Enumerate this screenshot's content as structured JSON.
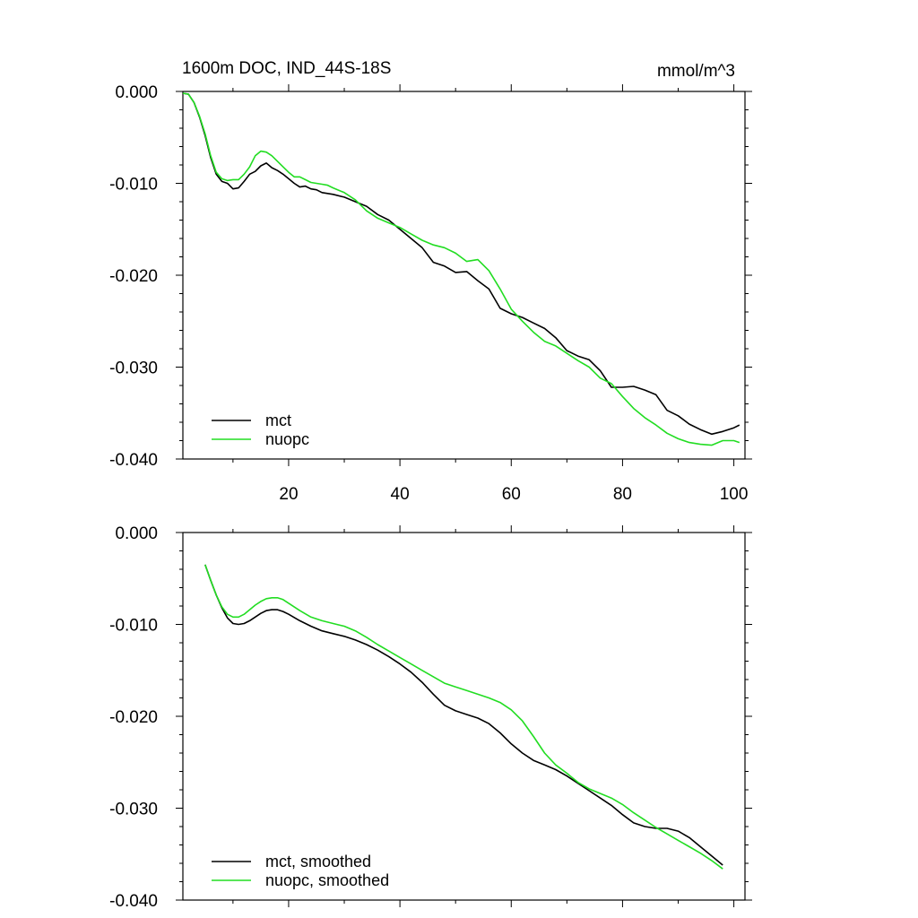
{
  "chart_data": [
    {
      "type": "line",
      "title": "1600m DOC, IND_44S-18S",
      "units": "mmol/m^3",
      "xlim": [
        1,
        102
      ],
      "ylim": [
        -0.04,
        0.0
      ],
      "xticks": [
        20,
        40,
        60,
        80,
        100
      ],
      "xtick_labels": [
        "20",
        "40",
        "60",
        "80",
        "100"
      ],
      "yticks": [
        0.0,
        -0.01,
        -0.02,
        -0.03,
        -0.04
      ],
      "ytick_labels": [
        "0.000",
        "-0.010",
        "-0.020",
        "-0.030",
        "-0.040"
      ],
      "legend_position": "bottom-left",
      "series": [
        {
          "name": "mct",
          "color": "#000000",
          "x": [
            1,
            2,
            3,
            4,
            5,
            6,
            7,
            8,
            9,
            10,
            11,
            12,
            13,
            14,
            15,
            16,
            17,
            18,
            19,
            20,
            21,
            22,
            23,
            24,
            25,
            26,
            27,
            28,
            30,
            32,
            34,
            36,
            38,
            40,
            42,
            44,
            46,
            48,
            50,
            52,
            54,
            56,
            58,
            60,
            62,
            64,
            66,
            68,
            70,
            72,
            74,
            76,
            78,
            80,
            82,
            84,
            86,
            88,
            90,
            92,
            94,
            96,
            98,
            100,
            101
          ],
          "y": [
            -0.0002,
            -0.0003,
            -0.0012,
            -0.0028,
            -0.0048,
            -0.0072,
            -0.009,
            -0.0098,
            -0.01,
            -0.0106,
            -0.0105,
            -0.0098,
            -0.009,
            -0.0087,
            -0.0081,
            -0.0078,
            -0.0083,
            -0.0086,
            -0.009,
            -0.0095,
            -0.01,
            -0.0104,
            -0.0103,
            -0.0106,
            -0.0107,
            -0.011,
            -0.0111,
            -0.0112,
            -0.0115,
            -0.012,
            -0.0125,
            -0.0134,
            -0.014,
            -0.015,
            -0.016,
            -0.017,
            -0.0186,
            -0.019,
            -0.0197,
            -0.0196,
            -0.0206,
            -0.0215,
            -0.0236,
            -0.0242,
            -0.0246,
            -0.0252,
            -0.0258,
            -0.0268,
            -0.0282,
            -0.0288,
            -0.0292,
            -0.0304,
            -0.0322,
            -0.0322,
            -0.0321,
            -0.0325,
            -0.033,
            -0.0347,
            -0.0353,
            -0.0362,
            -0.0368,
            -0.0373,
            -0.037,
            -0.0366,
            -0.0363
          ],
          "note_hidden": ""
        },
        {
          "name": "nuopc",
          "color": "#22dd22",
          "x": [
            1,
            2,
            3,
            4,
            5,
            6,
            7,
            8,
            9,
            10,
            11,
            12,
            13,
            14,
            15,
            16,
            17,
            18,
            19,
            20,
            21,
            22,
            23,
            24,
            25,
            26,
            27,
            28,
            30,
            32,
            34,
            36,
            38,
            40,
            42,
            44,
            46,
            48,
            50,
            52,
            54,
            56,
            58,
            60,
            62,
            64,
            66,
            68,
            70,
            72,
            74,
            76,
            78,
            80,
            82,
            84,
            86,
            88,
            90,
            92,
            94,
            96,
            98,
            100,
            101
          ],
          "y": [
            -0.0002,
            -0.0003,
            -0.0012,
            -0.0027,
            -0.0046,
            -0.007,
            -0.0088,
            -0.0095,
            -0.0097,
            -0.0096,
            -0.0096,
            -0.009,
            -0.0082,
            -0.007,
            -0.0065,
            -0.0066,
            -0.007,
            -0.0076,
            -0.0082,
            -0.0088,
            -0.0093,
            -0.0093,
            -0.0096,
            -0.0099,
            -0.01,
            -0.0101,
            -0.0102,
            -0.0105,
            -0.011,
            -0.0118,
            -0.013,
            -0.0138,
            -0.0143,
            -0.0148,
            -0.0155,
            -0.0162,
            -0.0167,
            -0.017,
            -0.0176,
            -0.0185,
            -0.0183,
            -0.0195,
            -0.0215,
            -0.0237,
            -0.025,
            -0.0262,
            -0.0272,
            -0.0277,
            -0.0285,
            -0.0293,
            -0.03,
            -0.0312,
            -0.0318,
            -0.0332,
            -0.0345,
            -0.0355,
            -0.0363,
            -0.0372,
            -0.0378,
            -0.0382,
            -0.0384,
            -0.0385,
            -0.038,
            -0.038,
            -0.0382
          ]
        }
      ]
    },
    {
      "type": "line",
      "title": "",
      "xlim": [
        1,
        102
      ],
      "ylim": [
        -0.04,
        0.0
      ],
      "xticks": [
        20,
        40,
        60,
        80,
        100
      ],
      "yticks": [
        0.0,
        -0.01,
        -0.02,
        -0.03,
        -0.04
      ],
      "ytick_labels": [
        "0.000",
        "-0.010",
        "-0.020",
        "-0.030",
        "-0.040"
      ],
      "legend_position": "bottom-left",
      "series": [
        {
          "name": "mct, smoothed",
          "color": "#000000",
          "x": [
            5,
            6,
            7,
            8,
            9,
            10,
            11,
            12,
            13,
            14,
            15,
            16,
            17,
            18,
            19,
            20,
            22,
            24,
            26,
            28,
            30,
            32,
            34,
            36,
            38,
            40,
            42,
            44,
            46,
            48,
            50,
            52,
            54,
            56,
            58,
            60,
            62,
            64,
            66,
            68,
            70,
            72,
            74,
            76,
            78,
            80,
            82,
            84,
            86,
            88,
            90,
            92,
            94,
            96,
            98
          ],
          "y": [
            -0.0035,
            -0.0052,
            -0.0068,
            -0.0082,
            -0.0093,
            -0.0099,
            -0.01,
            -0.0099,
            -0.0096,
            -0.0092,
            -0.0088,
            -0.0085,
            -0.0084,
            -0.0084,
            -0.0086,
            -0.0089,
            -0.0096,
            -0.0102,
            -0.0107,
            -0.011,
            -0.0113,
            -0.0117,
            -0.0122,
            -0.0128,
            -0.0135,
            -0.0143,
            -0.0152,
            -0.0163,
            -0.0176,
            -0.0188,
            -0.0194,
            -0.0198,
            -0.0202,
            -0.0208,
            -0.0218,
            -0.023,
            -0.024,
            -0.0248,
            -0.0253,
            -0.0258,
            -0.0265,
            -0.0273,
            -0.0281,
            -0.0289,
            -0.0297,
            -0.0307,
            -0.0316,
            -0.032,
            -0.0322,
            -0.0322,
            -0.0325,
            -0.0332,
            -0.0342,
            -0.0352,
            -0.0362
          ]
        },
        {
          "name": "nuopc, smoothed",
          "color": "#22dd22",
          "x": [
            5,
            6,
            7,
            8,
            9,
            10,
            11,
            12,
            13,
            14,
            15,
            16,
            17,
            18,
            19,
            20,
            22,
            24,
            26,
            28,
            30,
            32,
            34,
            36,
            38,
            40,
            42,
            44,
            46,
            48,
            50,
            52,
            54,
            56,
            58,
            60,
            62,
            64,
            66,
            68,
            70,
            72,
            74,
            76,
            78,
            80,
            82,
            84,
            86,
            88,
            90,
            92,
            94,
            96,
            98
          ],
          "y": [
            -0.0035,
            -0.0052,
            -0.0068,
            -0.0081,
            -0.0089,
            -0.0092,
            -0.0092,
            -0.0089,
            -0.0084,
            -0.0079,
            -0.0075,
            -0.0072,
            -0.0071,
            -0.0071,
            -0.0073,
            -0.0077,
            -0.0085,
            -0.0092,
            -0.0096,
            -0.0099,
            -0.0102,
            -0.0107,
            -0.0114,
            -0.0122,
            -0.0129,
            -0.0136,
            -0.0143,
            -0.015,
            -0.0157,
            -0.0164,
            -0.0168,
            -0.0172,
            -0.0176,
            -0.018,
            -0.0185,
            -0.0193,
            -0.0205,
            -0.0222,
            -0.024,
            -0.0253,
            -0.0262,
            -0.0272,
            -0.0279,
            -0.0284,
            -0.0289,
            -0.0296,
            -0.0305,
            -0.0313,
            -0.0321,
            -0.0328,
            -0.0335,
            -0.0342,
            -0.0349,
            -0.0357,
            -0.0366
          ]
        }
      ]
    }
  ]
}
